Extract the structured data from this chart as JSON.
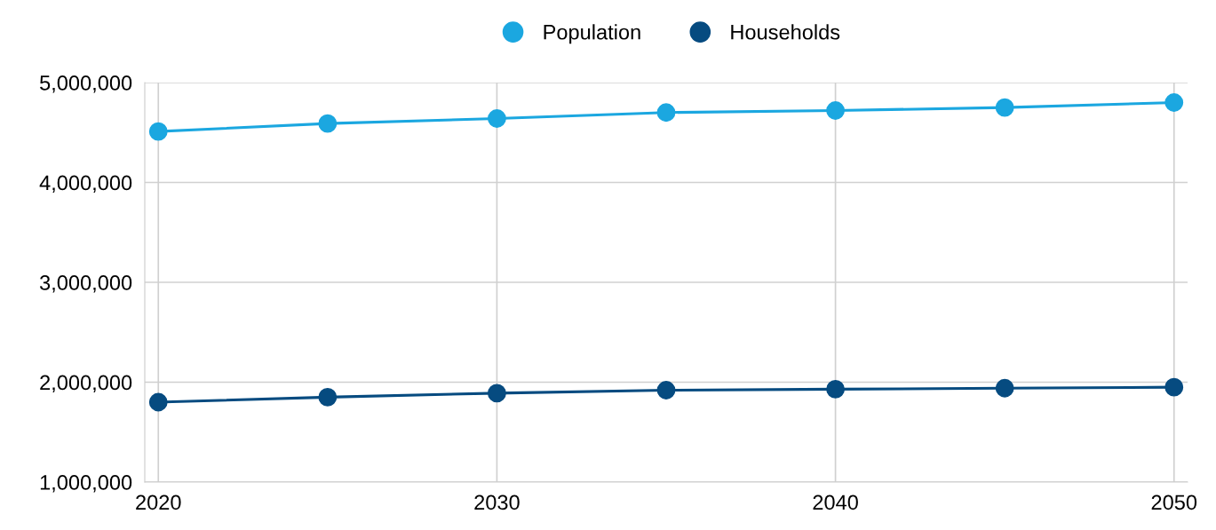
{
  "chart_data": {
    "type": "line",
    "x": [
      2020,
      2025,
      2030,
      2035,
      2040,
      2045,
      2050
    ],
    "series": [
      {
        "name": "Population",
        "color": "#1ba7e0",
        "values": [
          4510000,
          4590000,
          4640000,
          4700000,
          4720000,
          4750000,
          4800000
        ]
      },
      {
        "name": "Households",
        "color": "#064b80",
        "values": [
          1800000,
          1850000,
          1890000,
          1920000,
          1930000,
          1940000,
          1950000
        ]
      }
    ],
    "xlim": [
      2019.6,
      2050.4
    ],
    "xticks": [
      2020,
      2030,
      2040,
      2050
    ],
    "ylim": [
      1000000,
      5000000
    ],
    "yticks": [
      {
        "value": 1000000,
        "label": "1,000,000"
      },
      {
        "value": 2000000,
        "label": "2,000,000"
      },
      {
        "value": 3000000,
        "label": "3,000,000"
      },
      {
        "value": 4000000,
        "label": "4,000,000"
      },
      {
        "value": 5000000,
        "label": "5,000,000"
      }
    ],
    "grid": true,
    "legend": "top",
    "marker": "circle",
    "line_style": "solid"
  }
}
